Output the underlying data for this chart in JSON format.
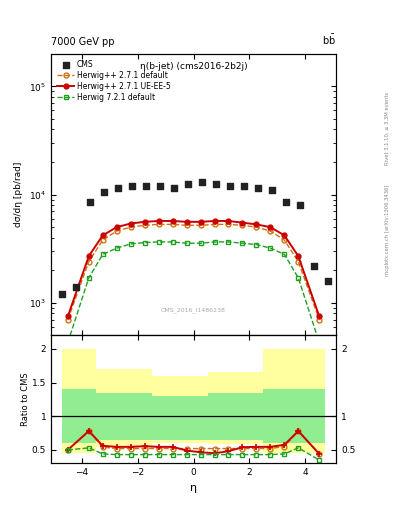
{
  "title_top": "7000 GeV pp",
  "title_top_right": "b$\\bar{\\rm b}$",
  "title_main": "η(b-jet) (cms2016-2b2j)",
  "watermark": "CMS_2016_I1486238",
  "right_label_top": "Rivet 3.1.10, ≥ 3.3M events",
  "right_label_bot": "mcplots.cern.ch [arXiv:1306.3436]",
  "ylabel_main": "dσ/dη [pb/rad]",
  "ylabel_ratio": "Ratio to CMS",
  "xlabel": "η",
  "eta_cms": [
    -4.7,
    -4.2,
    -3.7,
    -3.2,
    -2.7,
    -2.2,
    -1.7,
    -1.2,
    -0.7,
    -0.2,
    0.3,
    0.8,
    1.3,
    1.8,
    2.3,
    2.8,
    3.3,
    3.8,
    4.3,
    4.8
  ],
  "cms_vals": [
    1200,
    1400,
    8500,
    10500,
    11500,
    12000,
    12000,
    12000,
    11500,
    12500,
    13000,
    12500,
    12000,
    12000,
    11500,
    11000,
    8500,
    8000,
    2200,
    1600
  ],
  "eta_herwig": [
    -4.5,
    -3.75,
    -3.25,
    -2.75,
    -2.25,
    -1.75,
    -1.25,
    -0.75,
    -0.25,
    0.25,
    0.75,
    1.25,
    1.75,
    2.25,
    2.75,
    3.25,
    3.75,
    4.5
  ],
  "herwig271_def": [
    700,
    2400,
    3800,
    4600,
    5000,
    5200,
    5300,
    5300,
    5200,
    5200,
    5300,
    5300,
    5200,
    5000,
    4600,
    3800,
    2400,
    700
  ],
  "herwig271_uee5": [
    750,
    2700,
    4200,
    5000,
    5400,
    5600,
    5700,
    5700,
    5600,
    5600,
    5700,
    5700,
    5500,
    5300,
    5000,
    4200,
    2700,
    750
  ],
  "herwig721_def": [
    430,
    1700,
    2800,
    3200,
    3500,
    3600,
    3650,
    3650,
    3550,
    3550,
    3650,
    3650,
    3550,
    3450,
    3200,
    2800,
    1700,
    430
  ],
  "ratio_herwig271_def": [
    0.5,
    0.78,
    0.54,
    0.52,
    0.52,
    0.52,
    0.52,
    0.52,
    0.52,
    0.52,
    0.52,
    0.52,
    0.52,
    0.52,
    0.52,
    0.55,
    0.78,
    0.44
  ],
  "ratio_herwig271_uee5": [
    0.5,
    0.78,
    0.56,
    0.545,
    0.545,
    0.555,
    0.545,
    0.545,
    0.49,
    0.465,
    0.45,
    0.48,
    0.54,
    0.545,
    0.545,
    0.575,
    0.78,
    0.44
  ],
  "ratio_herwig721_def": [
    0.5,
    0.53,
    0.44,
    0.43,
    0.43,
    0.43,
    0.43,
    0.43,
    0.43,
    0.43,
    0.43,
    0.43,
    0.43,
    0.43,
    0.43,
    0.44,
    0.53,
    0.35
  ],
  "band_x": [
    -4.7,
    -3.5,
    -3.5,
    -1.5,
    -1.5,
    0.5,
    0.5,
    2.5,
    2.5,
    4.7
  ],
  "band_yellow_top": [
    2.0,
    2.0,
    1.7,
    1.7,
    1.6,
    1.6,
    1.65,
    1.65,
    2.0,
    2.0
  ],
  "band_yellow_bot": [
    0.45,
    0.45,
    0.55,
    0.55,
    0.6,
    0.6,
    0.58,
    0.58,
    0.45,
    0.45
  ],
  "band_green_top": [
    1.4,
    1.4,
    1.35,
    1.35,
    1.3,
    1.3,
    1.35,
    1.35,
    1.4,
    1.4
  ],
  "band_green_bot": [
    0.6,
    0.6,
    0.65,
    0.65,
    0.65,
    0.65,
    0.65,
    0.65,
    0.6,
    0.6
  ],
  "ylim_main": [
    500,
    200000
  ],
  "ylim_ratio": [
    0.3,
    2.2
  ],
  "yticks_ratio": [
    0.5,
    1.0,
    1.5,
    2.0
  ],
  "color_cms": "#222222",
  "color_herwig271_def": "#d07010",
  "color_herwig271_uee5": "#cc0000",
  "color_herwig721_def": "#20a020",
  "color_yellow": "#ffffa0",
  "color_green": "#90ee90"
}
